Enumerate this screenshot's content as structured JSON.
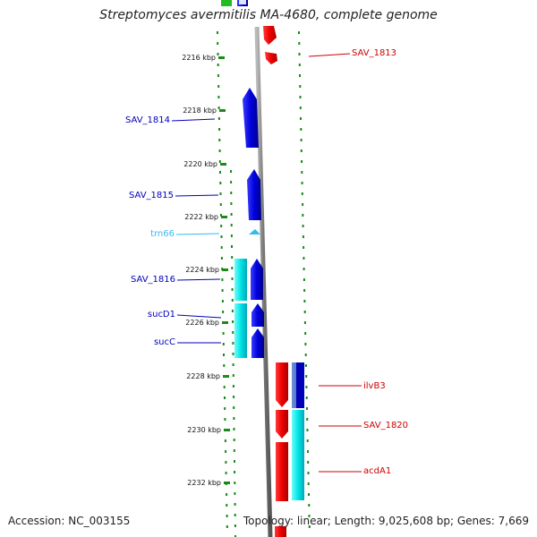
{
  "title": "Streptomyces avermitilis MA-4680, complete genome",
  "footer": {
    "accession": "Accession: NC_003155",
    "summary": "Topology: linear; Length: 9,025,608 bp; Genes: 7,669"
  },
  "ticks": [
    {
      "label": "2216 kbp"
    },
    {
      "label": "2218 kbp"
    },
    {
      "label": "2220 kbp"
    },
    {
      "label": "2222 kbp"
    },
    {
      "label": "2224 kbp"
    },
    {
      "label": "2226 kbp"
    },
    {
      "label": "2228 kbp"
    },
    {
      "label": "2230 kbp"
    },
    {
      "label": "2232 kbp"
    }
  ],
  "genes": [
    {
      "label": "SAV_1813",
      "strand": "right",
      "color": "#cc0000"
    },
    {
      "label": "SAV_1814",
      "strand": "left",
      "color": "#0000bb"
    },
    {
      "label": "SAV_1815",
      "strand": "left",
      "color": "#0000bb"
    },
    {
      "label": "trn66",
      "strand": "left",
      "color": "#33bbee"
    },
    {
      "label": "SAV_1816",
      "strand": "left",
      "color": "#0000bb"
    },
    {
      "label": "sucD1",
      "strand": "left",
      "color": "#0000bb"
    },
    {
      "label": "sucC",
      "strand": "left",
      "color": "#0000bb"
    },
    {
      "label": "ilvB3",
      "strand": "right",
      "color": "#cc0000"
    },
    {
      "label": "SAV_1820",
      "strand": "right",
      "color": "#cc0000"
    },
    {
      "label": "acdA1",
      "strand": "right",
      "color": "#cc0000"
    }
  ],
  "colors": {
    "forward_cds": "#ff0000",
    "reverse_cds": "#0000dd",
    "cog_cyan": "#00e5e5",
    "trna": "#33bbee",
    "backbone": "#888888",
    "tick_green": "#1a8a1a"
  }
}
